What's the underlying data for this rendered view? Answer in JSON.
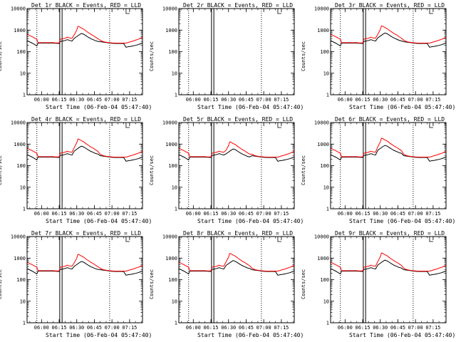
{
  "chart_data": {
    "type": "line",
    "layout": "3x3 grid",
    "panels": [
      {
        "title": "Det 1r BLACK = Events, RED = LLD",
        "has_data": true
      },
      {
        "title": "Det 2r BLACK = Events, RED = LLD",
        "has_data": false
      },
      {
        "title": "Det 3r BLACK = Events, RED = LLD",
        "has_data": true
      },
      {
        "title": "Det 4r BLACK = Events, RED = LLD",
        "has_data": true
      },
      {
        "title": "Det 5r BLACK = Events, RED = LLD",
        "has_data": true
      },
      {
        "title": "Det 6r BLACK = Events, RED = LLD",
        "has_data": true
      },
      {
        "title": "Det 7r BLACK = Events, RED = LLD",
        "has_data": true
      },
      {
        "title": "Det 8r BLACK = Events, RED = LLD",
        "has_data": true
      },
      {
        "title": "Det 9r BLACK = Events, RED = LLD",
        "has_data": true
      }
    ],
    "xlabel": "Start Time (06-Feb-04 05:47:40)",
    "ylabel": "Counts/sec",
    "y_scale": "log",
    "ylim": [
      1,
      10000
    ],
    "y_ticks": [
      "1",
      "10",
      "100",
      "1000",
      "10000"
    ],
    "x_ticks": [
      "06:00",
      "06:15",
      "06:30",
      "06:45",
      "07:00",
      "07:15"
    ],
    "x_tick_minutes": [
      0,
      15,
      30,
      45,
      60,
      75
    ],
    "xlim_minutes": [
      -12.33,
      86
    ],
    "dotted_lines_minutes": [
      -4,
      58
    ],
    "solid_double_lines_minutes": [
      15.5,
      17.5
    ],
    "series": [
      {
        "label_color": "BLACK",
        "meaning": "Events",
        "color": "#000000",
        "x": [
          -12,
          -8,
          -4,
          -3,
          0,
          4,
          8,
          10,
          12,
          15,
          16,
          18,
          20,
          22,
          24,
          26,
          28,
          30,
          32,
          34,
          36,
          38,
          40,
          42,
          44,
          46,
          48,
          50,
          52,
          54,
          56,
          58,
          60,
          62,
          64,
          66,
          68,
          70,
          72,
          74,
          76,
          78,
          80,
          82,
          84,
          86
        ],
        "y": [
          320,
          250,
          185,
          250,
          250,
          250,
          250,
          250,
          245,
          240,
          300,
          310,
          330,
          360,
          330,
          310,
          420,
          500,
          600,
          700,
          640,
          540,
          460,
          400,
          360,
          320,
          300,
          290,
          280,
          270,
          260,
          250,
          245,
          240,
          240,
          240,
          240,
          238,
          160,
          170,
          175,
          185,
          195,
          210,
          230,
          255
        ]
      },
      {
        "label_color": "RED",
        "meaning": "LLD",
        "color": "#ff0000",
        "x": [
          -12,
          -10,
          -8,
          -6,
          -4,
          -3,
          0,
          4,
          8,
          10,
          12,
          15,
          16,
          18,
          20,
          22,
          24,
          26,
          28,
          30,
          31,
          32,
          34,
          36,
          38,
          40,
          42,
          44,
          46,
          48,
          50,
          52,
          54,
          56,
          58,
          60,
          62,
          64,
          66,
          68,
          70,
          72,
          74,
          76,
          78,
          80,
          82,
          84,
          86
        ],
        "y": [
          640,
          560,
          500,
          430,
          380,
          260,
          260,
          260,
          260,
          260,
          255,
          255,
          380,
          400,
          420,
          470,
          430,
          420,
          620,
          1000,
          1500,
          1450,
          1250,
          1100,
          900,
          760,
          640,
          560,
          470,
          400,
          340,
          300,
          280,
          270,
          260,
          255,
          250,
          250,
          250,
          250,
          250,
          250,
          270,
          290,
          310,
          340,
          370,
          410,
          470
        ]
      }
    ]
  }
}
